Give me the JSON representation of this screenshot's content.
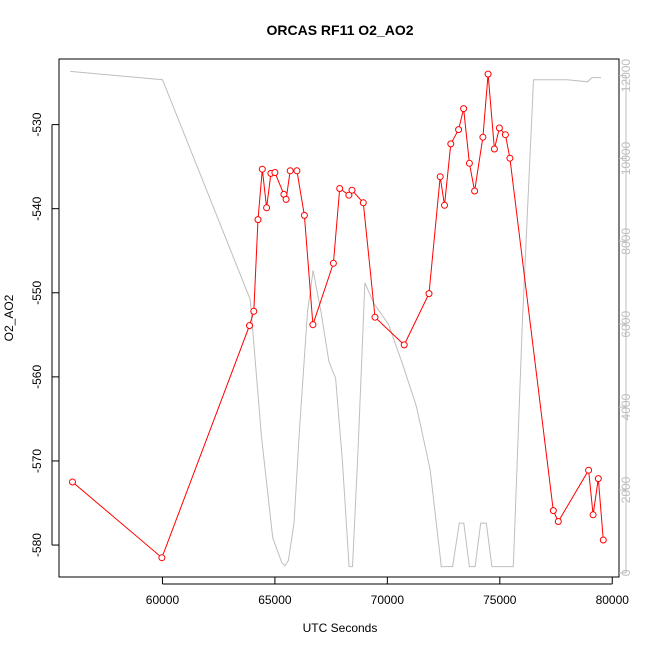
{
  "chart_data": {
    "type": "line",
    "title": "ORCAS RF11 O2_AO2",
    "xlabel": "UTC Seconds",
    "ylabel": "O2_AO2",
    "y2label": "",
    "xlim": [
      55400,
      80300
    ],
    "ylim": [
      -583.8,
      -522.2
    ],
    "y2lim": [
      -100,
      12400
    ],
    "x_ticks": [
      60000,
      65000,
      70000,
      75000,
      80000
    ],
    "y_ticks": [
      -580,
      -570,
      -560,
      -550,
      -540,
      -530
    ],
    "y2_ticks": [
      0,
      2000,
      4000,
      6000,
      8000,
      10000,
      12000
    ],
    "grid": false,
    "series": [
      {
        "color": "#ff0000",
        "axis": "left",
        "markers": "open-circle",
        "x": [
          56000,
          59975,
          63870,
          64060,
          64250,
          64440,
          64630,
          64820,
          65000,
          65400,
          65500,
          65680,
          65980,
          66310,
          66690,
          67600,
          67880,
          68290,
          68430,
          68930,
          69450,
          70750,
          71850,
          72350,
          72540,
          72820,
          73170,
          73390,
          73650,
          73880,
          74250,
          74480,
          74760,
          74980,
          75250,
          75450,
          77380,
          77600,
          78950,
          79150,
          79380,
          79600
        ],
        "y": [
          -572.5,
          -581.5,
          -553.9,
          -552.2,
          -541.3,
          -535.3,
          -539.9,
          -535.8,
          -535.7,
          -538.3,
          -538.9,
          -535.5,
          -535.5,
          -540.8,
          -553.8,
          -546.5,
          -537.6,
          -538.4,
          -537.8,
          -539.3,
          -552.9,
          -556.2,
          -550.1,
          -536.2,
          -539.6,
          -532.3,
          -530.6,
          -528.1,
          -534.6,
          -537.9,
          -531.5,
          -524.0,
          -532.9,
          -530.4,
          -531.2,
          -534.0,
          -575.9,
          -577.2,
          -571.1,
          -576.4,
          -572.1,
          -579.4
        ]
      },
      {
        "color": "#bebebe",
        "axis": "right",
        "markers": "none",
        "x": [
          55900,
          60000,
          63900,
          64400,
          64900,
          65300,
          65450,
          65600,
          65850,
          66100,
          66450,
          66700,
          67050,
          67400,
          67700,
          68000,
          68300,
          68450,
          68700,
          69000,
          69400,
          70050,
          70700,
          71300,
          71900,
          72400,
          72900,
          73200,
          73400,
          73650,
          73900,
          74150,
          74400,
          74650,
          74950,
          75200,
          75600,
          76000,
          76500,
          77000,
          77400,
          78000,
          78900,
          79100,
          79500
        ],
        "y": [
          12100,
          11900,
          6600,
          3300,
          850,
          250,
          170,
          300,
          1200,
          3500,
          6300,
          7300,
          6300,
          5100,
          4700,
          2700,
          150,
          150,
          3000,
          7000,
          6500,
          6000,
          5000,
          4000,
          2500,
          150,
          150,
          1200,
          1200,
          150,
          150,
          1200,
          1200,
          150,
          150,
          150,
          150,
          6000,
          11900,
          11900,
          11900,
          11900,
          11850,
          11950,
          11950
        ]
      }
    ]
  }
}
